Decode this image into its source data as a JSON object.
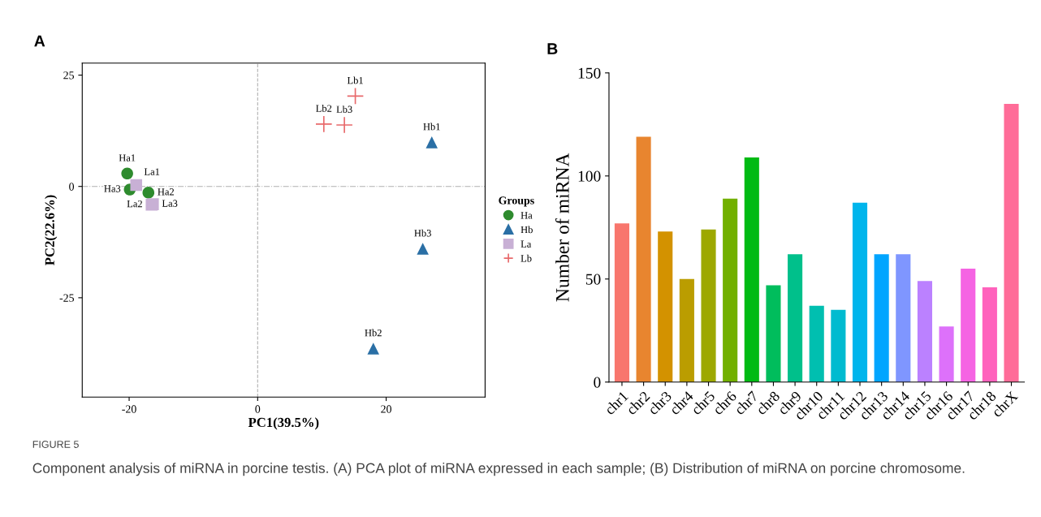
{
  "chart_data": [
    {
      "type": "scatter",
      "title": "A",
      "xlabel": "PC1(39.5%)",
      "ylabel": "PC2(22.6%)",
      "legend_title": "Groups",
      "legend": "right",
      "grid": false,
      "xlim": [
        -27.3,
        35.4
      ],
      "ylim": [
        -47.3,
        27.7
      ],
      "xticks": [
        -20,
        0,
        20
      ],
      "yticks": [
        -25,
        0,
        25
      ],
      "ref_lines": [
        {
          "axis": "x",
          "value": 0,
          "color": "#b0b0b0",
          "line_style": "dashed"
        },
        {
          "axis": "y",
          "value": 0,
          "color": "#b0b0b0",
          "line_style": "dashdot"
        }
      ],
      "series": [
        {
          "name": "Ha",
          "color": "#2e8b2e",
          "marker": "circle",
          "x": [
            -20.3,
            -17.0,
            -19.9
          ],
          "values": [
            2.9,
            -1.4,
            -0.7
          ],
          "value_labels": [
            "Ha1",
            "Ha2",
            "Ha3"
          ]
        },
        {
          "name": "Hb",
          "color": "#2a6fa5",
          "marker": "triangle",
          "x": [
            27.1,
            18.0,
            25.7
          ],
          "values": [
            9.9,
            -36.4,
            -14.0
          ],
          "value_labels": [
            "Hb1",
            "Hb2",
            "Hb3"
          ]
        },
        {
          "name": "La",
          "color": "#c8b0d5",
          "marker": "square",
          "x": [
            -18.9,
            -16.5,
            -16.3
          ],
          "values": [
            0.3,
            -4.1,
            -4.0
          ],
          "value_labels": [
            "La1",
            "La2",
            "La3"
          ]
        },
        {
          "name": "Lb",
          "color": "#e8696b",
          "marker": "cross",
          "x": [
            15.2,
            10.3,
            13.5
          ],
          "values": [
            20.3,
            14.0,
            13.8
          ],
          "value_labels": [
            "Lb1",
            "Lb2",
            "Lb3"
          ]
        }
      ],
      "annotations": [
        "FIGURE 5",
        "Component analysis of miRNA in porcine testis. (A) PCA plot of miRNA expressed in each sample; (B) Distribution of miRNA on porcine chromosome."
      ]
    },
    {
      "type": "bar",
      "title": "B",
      "ylabel": "Number of miRNA",
      "grid": false,
      "categories": [
        "chr1",
        "chr2",
        "chr3",
        "chr4",
        "chr5",
        "chr6",
        "chr7",
        "chr8",
        "chr9",
        "chr10",
        "chr11",
        "chr12",
        "chr13",
        "chr14",
        "chr15",
        "chr16",
        "chr17",
        "chr18",
        "chrX"
      ],
      "values": [
        77,
        119,
        73,
        50,
        74,
        89,
        109,
        47,
        62,
        37,
        35,
        87,
        62,
        62,
        49,
        27,
        55,
        46,
        135
      ],
      "colors": [
        "#f8766d",
        "#e8852f",
        "#d39200",
        "#bb9d00",
        "#9da800",
        "#72b000",
        "#00ba13",
        "#00bd5c",
        "#00c08b",
        "#00bfb0",
        "#00bbd0",
        "#00b5ec",
        "#00a5ff",
        "#7f96ff",
        "#bb81ff",
        "#dd71fa",
        "#f564e3",
        "#ff62bc",
        "#ff6c98"
      ],
      "ylim": [
        0,
        150
      ],
      "yticks": [
        0,
        50,
        100,
        150
      ]
    }
  ]
}
